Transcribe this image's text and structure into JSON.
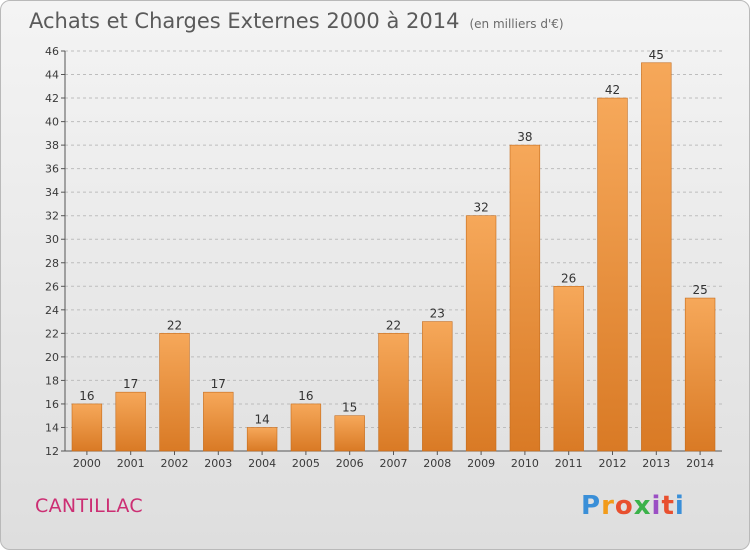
{
  "title": "Achats et Charges Externes 2000 à 2014",
  "subtitle": "(en milliers d'€)",
  "location": "CANTILLAC",
  "logo": {
    "letters": [
      "P",
      "r",
      "o",
      "x",
      "i",
      "t",
      "i"
    ],
    "colors": [
      "#3a8fd8",
      "#f29b1a",
      "#e8502f",
      "#3bb24a",
      "#9b4fc4",
      "#e8502f",
      "#3a8fd8"
    ]
  },
  "colors": {
    "bar_top": "#f6a85a",
    "bar_bottom": "#d97a25",
    "bar_edge": "#c46c1e",
    "grid": "#bdbdbd",
    "location_text": "#cc2e73"
  },
  "chart_data": {
    "type": "bar",
    "categories": [
      "2000",
      "2001",
      "2002",
      "2003",
      "2004",
      "2005",
      "2006",
      "2007",
      "2008",
      "2009",
      "2010",
      "2011",
      "2012",
      "2013",
      "2014"
    ],
    "values": [
      16,
      17,
      22,
      17,
      14,
      16,
      15,
      22,
      23,
      32,
      38,
      26,
      42,
      45,
      25
    ],
    "ylim": [
      12,
      46
    ],
    "yticks": [
      12,
      14,
      16,
      18,
      20,
      22,
      24,
      26,
      28,
      30,
      32,
      34,
      36,
      38,
      40,
      42,
      44,
      46
    ],
    "grid": true,
    "xlabel": "",
    "ylabel": ""
  }
}
